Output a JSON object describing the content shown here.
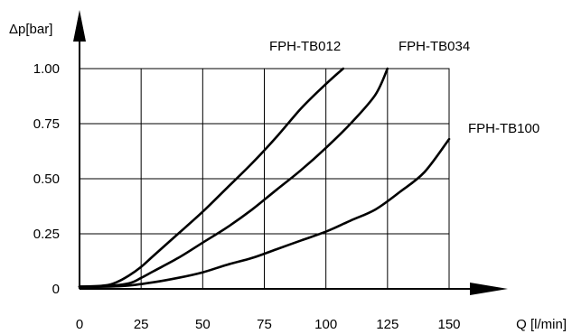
{
  "chart_data": {
    "type": "line",
    "xlabel": "Q [l/min]",
    "ylabel": "Δp[bar]",
    "xlim": [
      0,
      150
    ],
    "ylim": [
      0,
      1.0
    ],
    "x_ticks": [
      "0",
      "25",
      "50",
      "75",
      "100",
      "125",
      "150"
    ],
    "y_ticks": [
      "0",
      "0.25",
      "0.50",
      "0.75",
      "1.00"
    ],
    "grid": true,
    "legend": "none; series labels placed next to curves",
    "series": [
      {
        "name": "FPH-TB012",
        "x": [
          0,
          10,
          15,
          20,
          25,
          30,
          40,
          50,
          60,
          70,
          80,
          90,
          100,
          107
        ],
        "y": [
          0.01,
          0.015,
          0.03,
          0.06,
          0.1,
          0.15,
          0.25,
          0.35,
          0.46,
          0.57,
          0.69,
          0.82,
          0.93,
          1.0
        ]
      },
      {
        "name": "FPH-TB034",
        "x": [
          0,
          10,
          20,
          25,
          30,
          40,
          50,
          60,
          70,
          80,
          90,
          100,
          110,
          120,
          125
        ],
        "y": [
          0.01,
          0.012,
          0.025,
          0.05,
          0.08,
          0.14,
          0.21,
          0.28,
          0.36,
          0.45,
          0.54,
          0.64,
          0.75,
          0.88,
          1.0
        ]
      },
      {
        "name": "FPH-TB100",
        "x": [
          0,
          10,
          20,
          30,
          40,
          50,
          60,
          70,
          80,
          90,
          100,
          110,
          120,
          130,
          140,
          150
        ],
        "y": [
          0.01,
          0.01,
          0.015,
          0.03,
          0.05,
          0.075,
          0.11,
          0.14,
          0.18,
          0.22,
          0.26,
          0.31,
          0.36,
          0.44,
          0.53,
          0.68
        ]
      }
    ]
  }
}
